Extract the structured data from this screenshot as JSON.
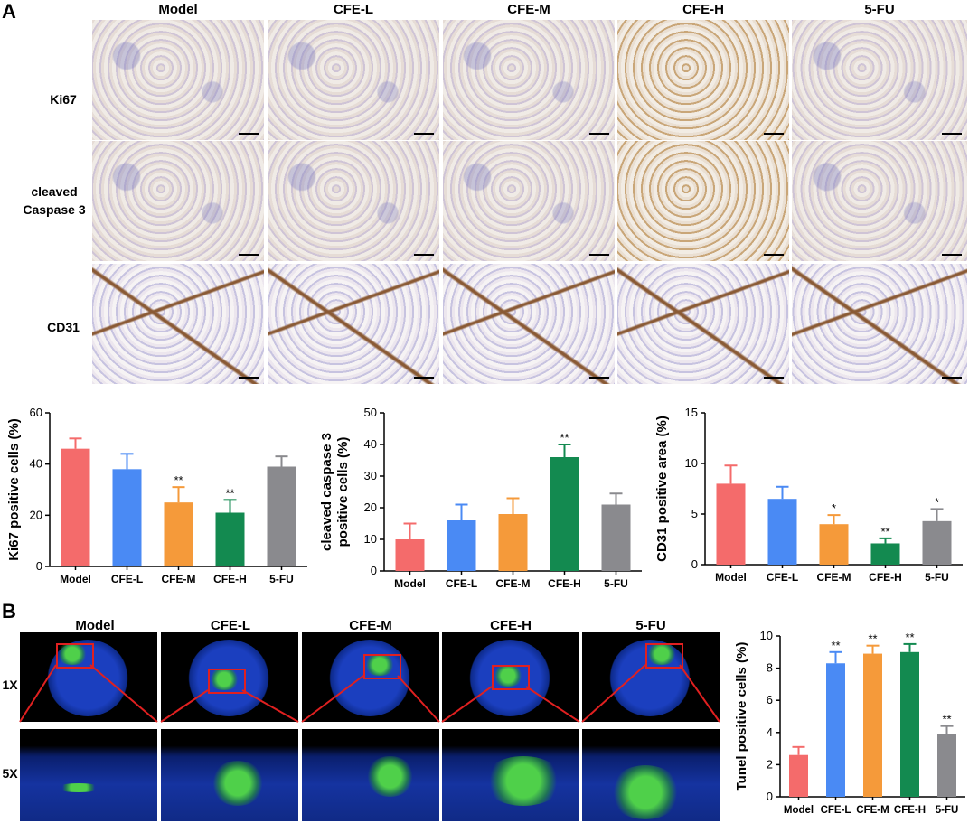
{
  "panels": {
    "a": "A",
    "b": "B"
  },
  "ihc": {
    "columns": [
      "Model",
      "CFE-L",
      "CFE-M",
      "CFE-H",
      "5-FU"
    ],
    "rows": [
      "Ki67",
      "cleaved\nCaspase 3",
      "CD31"
    ]
  },
  "tunel": {
    "columns": [
      "Model",
      "CFE-L",
      "CFE-M",
      "CFE-H",
      "5-FU"
    ],
    "rows": [
      "1X",
      "5X"
    ]
  },
  "colors": {
    "Model": "#f46b6b",
    "CFE-L": "#4a8af4",
    "CFE-M": "#f59a3a",
    "CFE-H": "#138a50",
    "5-FU": "#8a8a8e"
  },
  "chart_data": [
    {
      "type": "bar",
      "categories": [
        "Model",
        "CFE-L",
        "CFE-M",
        "CFE-H",
        "5-FU"
      ],
      "values": [
        46,
        38,
        25,
        21,
        39
      ],
      "errors": [
        4,
        6,
        6,
        5,
        4
      ],
      "significance": [
        "",
        "",
        "**",
        "**",
        ""
      ],
      "xlabel": "",
      "ylabel": "Ki67 positive cells (%)",
      "ylim": [
        0,
        60
      ],
      "yticks": [
        0,
        20,
        40,
        60
      ]
    },
    {
      "type": "bar",
      "categories": [
        "Model",
        "CFE-L",
        "CFE-M",
        "CFE-H",
        "5-FU"
      ],
      "values": [
        10,
        16,
        18,
        36,
        21
      ],
      "errors": [
        5,
        5,
        5,
        4,
        3.5
      ],
      "significance": [
        "",
        "",
        "",
        "**",
        ""
      ],
      "xlabel": "",
      "ylabel": "cleaved caspase 3\npositive cells (%)",
      "ylim": [
        0,
        50
      ],
      "yticks": [
        0,
        10,
        20,
        30,
        40,
        50
      ]
    },
    {
      "type": "bar",
      "categories": [
        "Model",
        "CFE-L",
        "CFE-M",
        "CFE-H",
        "5-FU"
      ],
      "values": [
        8,
        6.5,
        4,
        2.1,
        4.3
      ],
      "errors": [
        1.8,
        1.2,
        0.9,
        0.5,
        1.2
      ],
      "significance": [
        "",
        "",
        "*",
        "**",
        "*"
      ],
      "xlabel": "",
      "ylabel": "CD31 positive area (%)",
      "ylim": [
        0,
        15
      ],
      "yticks": [
        0,
        5,
        10,
        15
      ]
    },
    {
      "type": "bar",
      "categories": [
        "Model",
        "CFE-L",
        "CFE-M",
        "CFE-H",
        "5-FU"
      ],
      "values": [
        2.6,
        8.3,
        8.9,
        9.0,
        3.9
      ],
      "errors": [
        0.5,
        0.7,
        0.5,
        0.5,
        0.5
      ],
      "significance": [
        "",
        "**",
        "**",
        "**",
        "**"
      ],
      "xlabel": "",
      "ylabel": "Tunel positive cells (%)",
      "ylim": [
        0,
        10
      ],
      "yticks": [
        0,
        2,
        4,
        6,
        8,
        10
      ]
    }
  ]
}
